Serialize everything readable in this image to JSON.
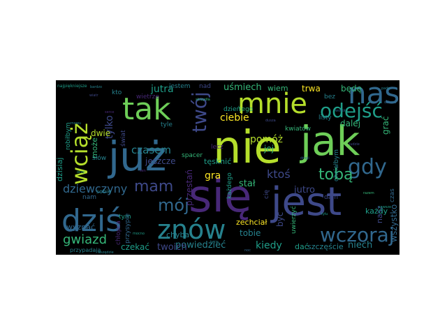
{
  "cloud": {
    "background": "#000000",
    "palette": [
      "#440154",
      "#482878",
      "#3e4989",
      "#31688e",
      "#26828e",
      "#1f9e89",
      "#35b779",
      "#6ece58",
      "#b5de2b",
      "#fde725"
    ],
    "words": [
      {
        "text": "nie",
        "color": "#b5de2b"
      },
      {
        "text": "już",
        "color": "#31688e"
      },
      {
        "text": "jak",
        "color": "#6ece58"
      },
      {
        "text": "się",
        "color": "#482878"
      },
      {
        "text": "jest",
        "color": "#3e4989"
      },
      {
        "text": "tak",
        "color": "#6ece58"
      },
      {
        "text": "mnie",
        "color": "#b5de2b"
      },
      {
        "text": "nas",
        "color": "#31688e"
      },
      {
        "text": "dziś",
        "color": "#31688e"
      },
      {
        "text": "znów",
        "color": "#26828e"
      },
      {
        "text": "wciąż",
        "color": "#b5de2b"
      },
      {
        "text": "twój",
        "color": "#3e4989"
      },
      {
        "text": "odejść",
        "color": "#1f9e89"
      },
      {
        "text": "wczoraj",
        "color": "#31688e"
      },
      {
        "text": "gdy",
        "color": "#31688e"
      },
      {
        "text": "tobą",
        "color": "#35b779"
      },
      {
        "text": "mam",
        "color": "#3e4989"
      },
      {
        "text": "mój",
        "color": "#31688e"
      },
      {
        "text": "dziewczyny",
        "color": "#31688e"
      },
      {
        "text": "gwiazd",
        "color": "#35b779"
      },
      {
        "text": "czasem",
        "color": "#26828e"
      },
      {
        "text": "ciebie",
        "color": "#fde725"
      },
      {
        "text": "pomóż",
        "color": "#b5de2b"
      },
      {
        "text": "ktoś",
        "color": "#3e4989"
      },
      {
        "text": "jutra",
        "color": "#1f9e89"
      },
      {
        "text": "uśmiech",
        "color": "#35b779"
      },
      {
        "text": "tylko",
        "color": "#3e4989"
      },
      {
        "text": "wszystko",
        "color": "#31688e"
      },
      {
        "text": "kiedy",
        "color": "#1f9e89"
      },
      {
        "text": "powiedzieć",
        "color": "#26828e"
      },
      {
        "text": "twoich",
        "color": "#3e4989"
      },
      {
        "text": "czekać",
        "color": "#1f9e89"
      },
      {
        "text": "stał",
        "color": "#35b779"
      },
      {
        "text": "gra",
        "color": "#fde725"
      },
      {
        "text": "jeszcze",
        "color": "#3e4989"
      },
      {
        "text": "przestań",
        "color": "#482878"
      },
      {
        "text": "tęsknić",
        "color": "#1f9e89"
      },
      {
        "text": "jutro",
        "color": "#3e4989"
      },
      {
        "text": "niech",
        "color": "#26828e"
      },
      {
        "text": "szczęście",
        "color": "#26828e"
      },
      {
        "text": "dać",
        "color": "#1f9e89"
      },
      {
        "text": "tobie",
        "color": "#26828e"
      },
      {
        "text": "być",
        "color": "#3e4989"
      },
      {
        "text": "trwa",
        "color": "#fde725"
      },
      {
        "text": "będę",
        "color": "#35b779"
      },
      {
        "text": "wiem",
        "color": "#35b779"
      },
      {
        "text": "dalej",
        "color": "#35b779"
      },
      {
        "text": "grać",
        "color": "#35b779"
      },
      {
        "text": "jej",
        "color": "#35b779"
      },
      {
        "text": "nasz",
        "color": "#3e4989"
      },
      {
        "text": "każdy",
        "color": "#1f9e89"
      },
      {
        "text": "wyznać",
        "color": "#31688e"
      },
      {
        "text": "chyba",
        "color": "#26828e"
      },
      {
        "text": "zechciał",
        "color": "#fde725"
      },
      {
        "text": "dwie",
        "color": "#b5de2b"
      },
      {
        "text": "może",
        "color": "#35b779"
      },
      {
        "text": "dzisiaj",
        "color": "#1f9e89"
      },
      {
        "text": "robiłbym",
        "color": "#1f9e89"
      },
      {
        "text": "przypadają",
        "color": "#26828e"
      },
      {
        "text": "nad",
        "color": "#3e4989"
      },
      {
        "text": "jestem",
        "color": "#26828e"
      },
      {
        "text": "kto",
        "color": "#26828e"
      },
      {
        "text": "dzień",
        "color": "#1f9e89"
      },
      {
        "text": "tego",
        "color": "#35b779"
      },
      {
        "text": "bez",
        "color": "#26828e"
      },
      {
        "text": "listy",
        "color": "#26828e"
      },
      {
        "text": "kwiatów",
        "color": "#35b779"
      },
      {
        "text": "tyle",
        "color": "#26828e"
      },
      {
        "text": "spacer",
        "color": "#35b779"
      },
      {
        "text": "lecz",
        "color": "#482878"
      },
      {
        "text": "każdego",
        "color": "#1f9e89"
      },
      {
        "text": "cię",
        "color": "#3e4989"
      },
      {
        "text": "dam",
        "color": "#3e4989"
      },
      {
        "text": "uwierzyć",
        "color": "#35b779"
      },
      {
        "text": "czas",
        "color": "#31688e"
      },
      {
        "text": "chciałbym",
        "color": "#26828e"
      },
      {
        "text": "nam",
        "color": "#31688e"
      },
      {
        "text": "tym",
        "color": "#1f9e89"
      },
      {
        "text": "chłopca",
        "color": "#482878"
      },
      {
        "text": "przysypie",
        "color": "#31688e"
      },
      {
        "text": "słów",
        "color": "#26828e"
      },
      {
        "text": "sobie",
        "color": "#26828e"
      },
      {
        "text": "najpiękniejsze",
        "color": "#1f9e89"
      },
      {
        "text": "wietrze",
        "color": "#482878"
      },
      {
        "text": "świat",
        "color": "#3e4989"
      },
      {
        "text": "bardzo",
        "color": "#26828e"
      },
      {
        "text": "wiatr",
        "color": "#3e4989"
      },
      {
        "text": "pada",
        "color": "#26828e"
      },
      {
        "text": "zawsze",
        "color": "#1f9e89"
      },
      {
        "text": "oczy",
        "color": "#35b779"
      },
      {
        "text": "serce",
        "color": "#482878"
      },
      {
        "text": "noc",
        "color": "#31688e"
      },
      {
        "text": "dusza",
        "color": "#3e4989"
      },
      {
        "text": "życie",
        "color": "#26828e"
      },
      {
        "text": "mocno",
        "color": "#1f9e89"
      },
      {
        "text": "wokół",
        "color": "#31688e"
      },
      {
        "text": "razem",
        "color": "#35b779"
      },
      {
        "text": "sen",
        "color": "#482878"
      },
      {
        "text": "drogi",
        "color": "#31688e"
      },
      {
        "text": "ludzie",
        "color": "#3e4989"
      },
      {
        "text": "znowu",
        "color": "#26828e"
      },
      {
        "text": "skrzydła",
        "color": "#35b779"
      },
      {
        "text": "tylu",
        "color": "#1f9e89"
      },
      {
        "text": "wszędzie",
        "color": "#26828e"
      },
      {
        "text": "dobrze",
        "color": "#31688e"
      }
    ]
  }
}
